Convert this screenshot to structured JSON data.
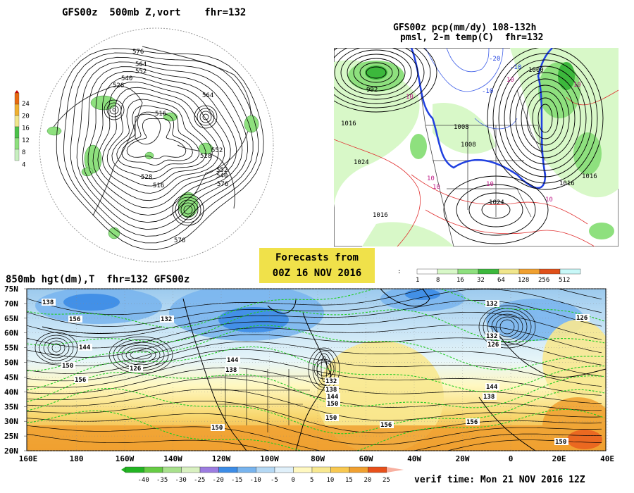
{
  "panel1": {
    "title": "GFS00z  500mb Z,vort",
    "fhr": "fhr=132",
    "colorbar_ticks": [
      "24",
      "20",
      "16",
      "12",
      "8",
      "4"
    ],
    "colorbar_colors": [
      "#ffffff",
      "#c8f0c0",
      "#8ee07e",
      "#4cc24a",
      "#f0e68c",
      "#f0b030",
      "#e86a10",
      "#cc0000"
    ],
    "contour_labels": [
      "576",
      "564",
      "552",
      "540",
      "528",
      "516",
      "552",
      "528",
      "564",
      "576",
      "552",
      "540",
      "528",
      "516",
      "576"
    ]
  },
  "panel2": {
    "title_line1": "GFS00z pcp(mm/dy) 108-132h",
    "title_line2": "pmsl, 2-m temp(C)  fhr=132",
    "labels": [
      "992",
      "1016",
      "1024",
      "1016",
      "1008",
      "1016",
      "1008",
      "1016",
      "1024",
      "1000",
      "10",
      "10",
      "10",
      "-10",
      "-10",
      "-20",
      "10",
      "10",
      "10",
      "10"
    ],
    "colorbar_ticks": [
      "1",
      "8",
      "16",
      "32",
      "64",
      "128",
      "256",
      "512"
    ],
    "colorbar_colors": [
      "#ffffff",
      "#d8f8c8",
      "#8ee07e",
      "#3cb83c",
      "#f0e68c",
      "#f0a030",
      "#e0501a",
      "#c8f8f8"
    ]
  },
  "forecast_box": {
    "line1": "Forecasts from",
    "line2": "00Z 16 NOV 2016"
  },
  "panel3": {
    "title": "850mb hgt(dm),T  fhr=132 GFS00z",
    "lat_labels": [
      "75N",
      "70N",
      "65N",
      "60N",
      "55N",
      "50N",
      "45N",
      "40N",
      "35N",
      "30N",
      "25N",
      "20N"
    ],
    "lon_labels": [
      "160E",
      "180",
      "160W",
      "140W",
      "120W",
      "100W",
      "80W",
      "60W",
      "40W",
      "20W",
      "0",
      "20E",
      "40E"
    ],
    "contour_labels": [
      "138",
      "156",
      "132",
      "144",
      "150",
      "126",
      "156",
      "144",
      "138",
      "132",
      "126",
      "132",
      "138",
      "144",
      "150",
      "150",
      "156",
      "150",
      "144",
      "138",
      "132",
      "126",
      "156",
      "150"
    ],
    "temp_colorbar_ticks": [
      "-40",
      "-35",
      "-30",
      "-25",
      "-20",
      "-15",
      "-10",
      "-5",
      "0",
      "5",
      "10",
      "15",
      "20",
      "25"
    ],
    "temp_colorbar_colors": [
      "#22b422",
      "#66cc44",
      "#a8e08c",
      "#d8f0c0",
      "#9c7ce0",
      "#3c8ce6",
      "#78b4ee",
      "#b4d8f4",
      "#e0f0fa",
      "#fff8c0",
      "#f8e890",
      "#f8c850",
      "#f0a030",
      "#e8501a"
    ]
  },
  "verif_time": "verif time: Mon 21 NOV 2016 12Z"
}
